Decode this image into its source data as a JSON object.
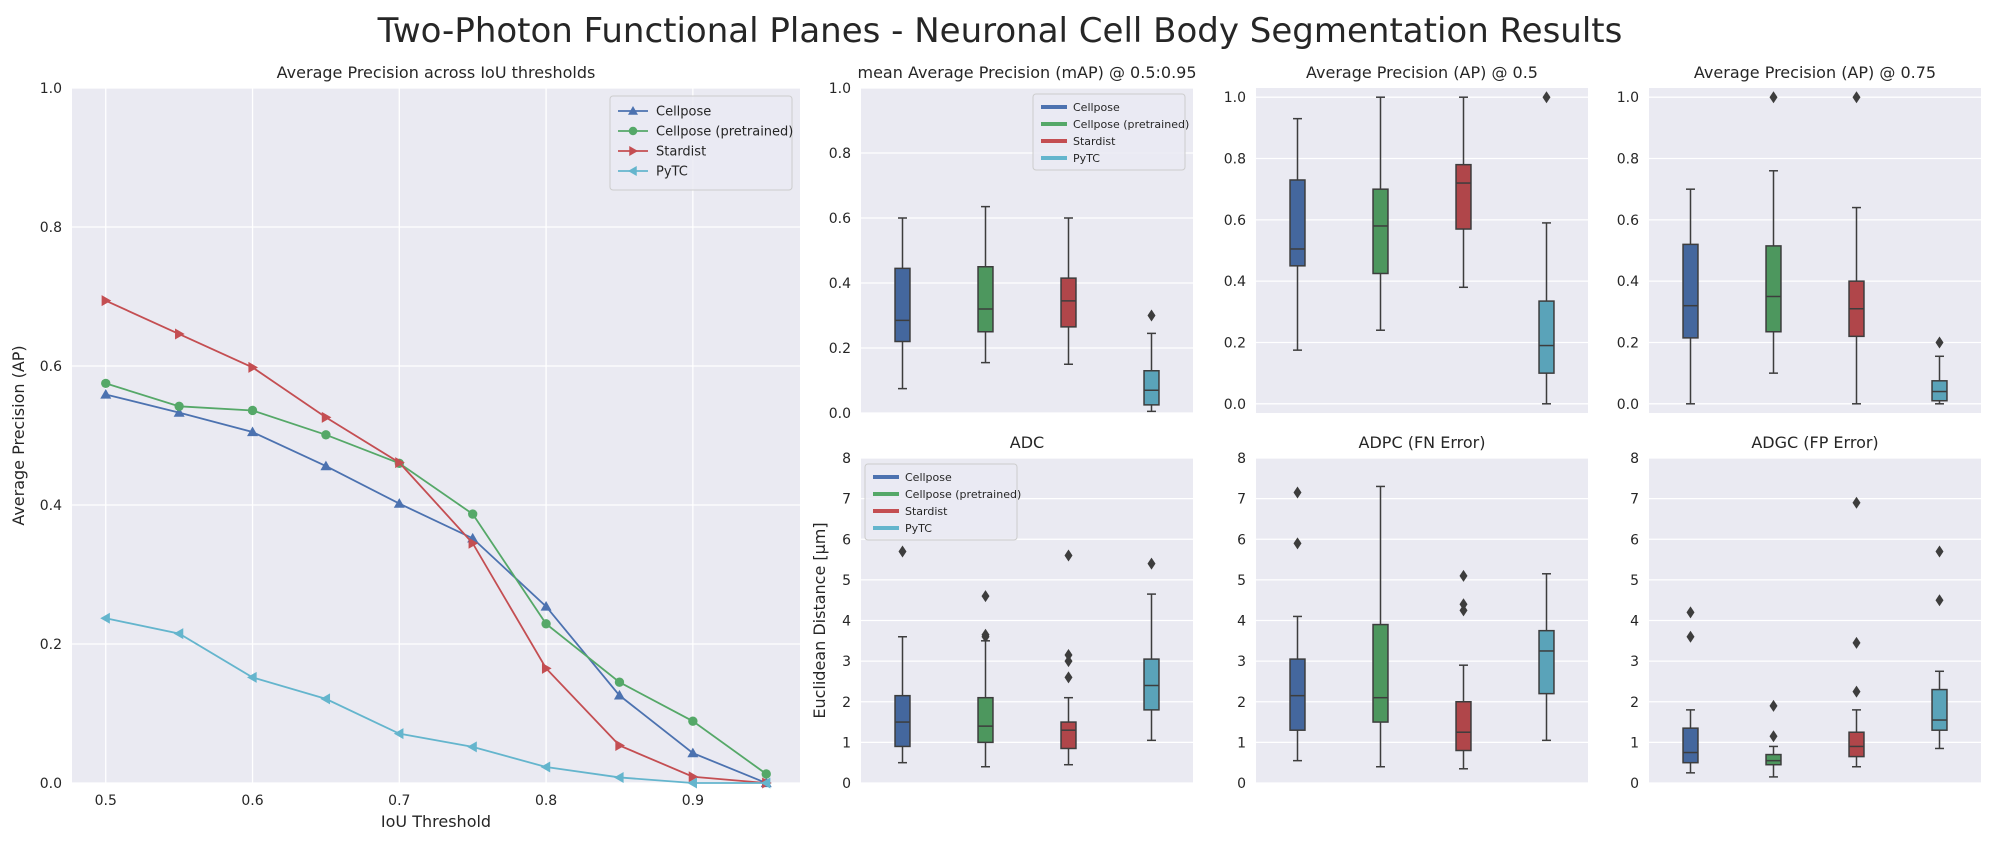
{
  "figure": {
    "title": "Two-Photon Functional Planes - Neuronal Cell Body Segmentation Results",
    "background": "#ffffff",
    "axes_facecolor": "#eaeaf2",
    "grid_color": "#ffffff",
    "legend_labels": [
      "Cellpose",
      "Cellpose (pretrained)",
      "Stardist",
      "PyTC"
    ],
    "colors": [
      "#4c72b0",
      "#55a868",
      "#c44e52",
      "#64b5cd"
    ]
  },
  "chart_data": [
    {
      "type": "line",
      "title": "Average Precision across IoU thresholds",
      "xlabel": "IoU Threshold",
      "ylabel": "Average Precision (AP)",
      "xlim": [
        0.477,
        0.973
      ],
      "ylim": [
        0,
        1.0
      ],
      "xticks": [
        "0.5",
        "0.6",
        "0.7",
        "0.8",
        "0.9"
      ],
      "yticks": [
        "0.0",
        "0.2",
        "0.4",
        "0.6",
        "0.8",
        "1.0"
      ],
      "grid": true,
      "legend_position": "upper right",
      "x": [
        0.5,
        0.55,
        0.6,
        0.65,
        0.7,
        0.75,
        0.8,
        0.85,
        0.9,
        0.95
      ],
      "series": [
        {
          "name": "Cellpose",
          "marker": "triangle-up",
          "color": "#4c72b0",
          "values": [
            0.559,
            0.533,
            0.505,
            0.456,
            0.402,
            0.352,
            0.254,
            0.126,
            0.043,
            0.0
          ]
        },
        {
          "name": "Cellpose (pretrained)",
          "marker": "circle",
          "color": "#55a868",
          "values": [
            0.575,
            0.542,
            0.536,
            0.501,
            0.46,
            0.387,
            0.229,
            0.145,
            0.089,
            0.013
          ]
        },
        {
          "name": "Stardist",
          "marker": "triangle-right",
          "color": "#c44e52",
          "values": [
            0.694,
            0.646,
            0.598,
            0.526,
            0.461,
            0.345,
            0.165,
            0.054,
            0.009,
            0.0
          ]
        },
        {
          "name": "PyTC",
          "marker": "triangle-left",
          "color": "#64b5cd",
          "values": [
            0.237,
            0.215,
            0.152,
            0.121,
            0.071,
            0.052,
            0.023,
            0.008,
            0.0,
            0.0
          ]
        }
      ]
    },
    {
      "type": "box",
      "title": "mean Average Precision (mAP) @ 0.5:0.95",
      "ylabel": "",
      "ylim": [
        0,
        1.0
      ],
      "yticks": [
        "0.0",
        "0.2",
        "0.4",
        "0.6",
        "0.8",
        "1.0"
      ],
      "grid": true,
      "legend_position": "upper right",
      "categories": [
        "Cellpose",
        "Cellpose (pretrained)",
        "Stardist",
        "PyTC"
      ],
      "boxes": [
        {
          "whislo": 0.075,
          "q1": 0.22,
          "med": 0.285,
          "q3": 0.445,
          "whishi": 0.6,
          "fliers": []
        },
        {
          "whislo": 0.155,
          "q1": 0.25,
          "med": 0.32,
          "q3": 0.45,
          "whishi": 0.635,
          "fliers": []
        },
        {
          "whislo": 0.15,
          "q1": 0.265,
          "med": 0.345,
          "q3": 0.415,
          "whishi": 0.6,
          "fliers": []
        },
        {
          "whislo": 0.005,
          "q1": 0.025,
          "med": 0.07,
          "q3": 0.13,
          "whishi": 0.245,
          "fliers": [
            0.3
          ]
        }
      ]
    },
    {
      "type": "box",
      "title": "Average Precision (AP) @ 0.5",
      "ylabel": "",
      "ylim": [
        -0.03,
        1.03
      ],
      "yticks": [
        "0.0",
        "0.2",
        "0.4",
        "0.6",
        "0.8",
        "1.0"
      ],
      "grid": true,
      "categories": [
        "Cellpose",
        "Cellpose (pretrained)",
        "Stardist",
        "PyTC"
      ],
      "boxes": [
        {
          "whislo": 0.175,
          "q1": 0.45,
          "med": 0.505,
          "q3": 0.73,
          "whishi": 0.93,
          "fliers": []
        },
        {
          "whislo": 0.24,
          "q1": 0.425,
          "med": 0.58,
          "q3": 0.7,
          "whishi": 1.0,
          "fliers": []
        },
        {
          "whislo": 0.38,
          "q1": 0.57,
          "med": 0.72,
          "q3": 0.78,
          "whishi": 1.0,
          "fliers": []
        },
        {
          "whislo": 0.0,
          "q1": 0.1,
          "med": 0.19,
          "q3": 0.335,
          "whishi": 0.59,
          "fliers": [
            1.0
          ]
        }
      ]
    },
    {
      "type": "box",
      "title": "Average Precision (AP) @ 0.75",
      "ylabel": "",
      "ylim": [
        -0.03,
        1.03
      ],
      "yticks": [
        "0.0",
        "0.2",
        "0.4",
        "0.6",
        "0.8",
        "1.0"
      ],
      "grid": true,
      "categories": [
        "Cellpose",
        "Cellpose (pretrained)",
        "Stardist",
        "PyTC"
      ],
      "boxes": [
        {
          "whislo": 0.0,
          "q1": 0.215,
          "med": 0.32,
          "q3": 0.52,
          "whishi": 0.7,
          "fliers": []
        },
        {
          "whislo": 0.1,
          "q1": 0.235,
          "med": 0.35,
          "q3": 0.515,
          "whishi": 0.76,
          "fliers": [
            1.0
          ]
        },
        {
          "whislo": 0.0,
          "q1": 0.22,
          "med": 0.31,
          "q3": 0.4,
          "whishi": 0.64,
          "fliers": [
            1.0
          ]
        },
        {
          "whislo": 0.0,
          "q1": 0.01,
          "med": 0.04,
          "q3": 0.075,
          "whishi": 0.155,
          "fliers": [
            0.2
          ]
        }
      ]
    },
    {
      "type": "box",
      "title": "ADC",
      "ylabel": "Euclidean Distance [µm]",
      "ylim": [
        0,
        8
      ],
      "yticks": [
        "0",
        "1",
        "2",
        "3",
        "4",
        "5",
        "6",
        "7",
        "8"
      ],
      "grid": true,
      "legend_position": "upper left",
      "categories": [
        "Cellpose",
        "Cellpose (pretrained)",
        "Stardist",
        "PyTC"
      ],
      "boxes": [
        {
          "whislo": 0.5,
          "q1": 0.9,
          "med": 1.5,
          "q3": 2.15,
          "whishi": 3.6,
          "fliers": [
            5.7
          ]
        },
        {
          "whislo": 0.4,
          "q1": 1.0,
          "med": 1.4,
          "q3": 2.1,
          "whishi": 3.5,
          "fliers": [
            3.6,
            3.65,
            4.6
          ]
        },
        {
          "whislo": 0.45,
          "q1": 0.85,
          "med": 1.3,
          "q3": 1.5,
          "whishi": 2.1,
          "fliers": [
            2.6,
            3.0,
            3.15,
            5.6
          ]
        },
        {
          "whislo": 1.05,
          "q1": 1.8,
          "med": 2.4,
          "q3": 3.05,
          "whishi": 4.65,
          "fliers": [
            5.4
          ]
        }
      ]
    },
    {
      "type": "box",
      "title": "ADPC (FN Error)",
      "ylabel": "",
      "ylim": [
        0,
        8
      ],
      "yticks": [
        "0",
        "1",
        "2",
        "3",
        "4",
        "5",
        "6",
        "7",
        "8"
      ],
      "grid": true,
      "categories": [
        "Cellpose",
        "Cellpose (pretrained)",
        "Stardist",
        "PyTC"
      ],
      "boxes": [
        {
          "whislo": 0.55,
          "q1": 1.3,
          "med": 2.15,
          "q3": 3.05,
          "whishi": 4.1,
          "fliers": [
            5.9,
            7.15
          ]
        },
        {
          "whislo": 0.4,
          "q1": 1.5,
          "med": 2.1,
          "q3": 3.9,
          "whishi": 7.3,
          "fliers": []
        },
        {
          "whislo": 0.35,
          "q1": 0.8,
          "med": 1.25,
          "q3": 2.0,
          "whishi": 2.9,
          "fliers": [
            4.25,
            4.4,
            5.1
          ]
        },
        {
          "whislo": 1.05,
          "q1": 2.2,
          "med": 3.25,
          "q3": 3.75,
          "whishi": 5.15,
          "fliers": []
        }
      ]
    },
    {
      "type": "box",
      "title": "ADGC (FP Error)",
      "ylabel": "",
      "ylim": [
        0,
        8
      ],
      "yticks": [
        "0",
        "1",
        "2",
        "3",
        "4",
        "5",
        "6",
        "7",
        "8"
      ],
      "grid": true,
      "categories": [
        "Cellpose",
        "Cellpose (pretrained)",
        "Stardist",
        "PyTC"
      ],
      "boxes": [
        {
          "whislo": 0.25,
          "q1": 0.5,
          "med": 0.75,
          "q3": 1.35,
          "whishi": 1.8,
          "fliers": [
            3.6,
            4.2
          ]
        },
        {
          "whislo": 0.15,
          "q1": 0.45,
          "med": 0.55,
          "q3": 0.7,
          "whishi": 0.9,
          "fliers": [
            1.15,
            1.9
          ]
        },
        {
          "whislo": 0.4,
          "q1": 0.65,
          "med": 0.9,
          "q3": 1.25,
          "whishi": 1.8,
          "fliers": [
            2.25,
            3.45,
            6.9
          ]
        },
        {
          "whislo": 0.85,
          "q1": 1.3,
          "med": 1.55,
          "q3": 2.3,
          "whishi": 2.75,
          "fliers": [
            4.5,
            5.7
          ]
        }
      ]
    }
  ]
}
